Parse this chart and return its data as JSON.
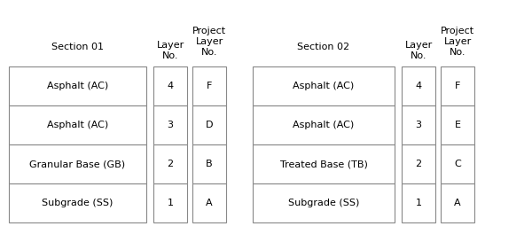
{
  "fig_width": 6.0,
  "fig_height": 2.64,
  "dpi": 100,
  "background_color": "#ffffff",
  "border_color": "#888888",
  "text_color": "#000000",
  "font_size": 8.0,
  "section1": {
    "header": "Section 01",
    "rows": [
      "Asphalt (AC)",
      "Asphalt (AC)",
      "Granular Base (GB)",
      "Subgrade (SS)"
    ]
  },
  "section2": {
    "header": "Section 02",
    "rows": [
      "Asphalt (AC)",
      "Asphalt (AC)",
      "Treated Base (TB)",
      "Subgrade (SS)"
    ]
  },
  "layer_no_header": "Layer\nNo.",
  "project_layer_header": "Project\nLayer\nNo.",
  "sec1_layer_nos": [
    "4",
    "3",
    "2",
    "1"
  ],
  "sec1_proj_layer_nos": [
    "F",
    "D",
    "B",
    "A"
  ],
  "sec2_layer_nos": [
    "4",
    "3",
    "2",
    "1"
  ],
  "sec2_proj_layer_nos": [
    "F",
    "E",
    "C",
    "A"
  ]
}
